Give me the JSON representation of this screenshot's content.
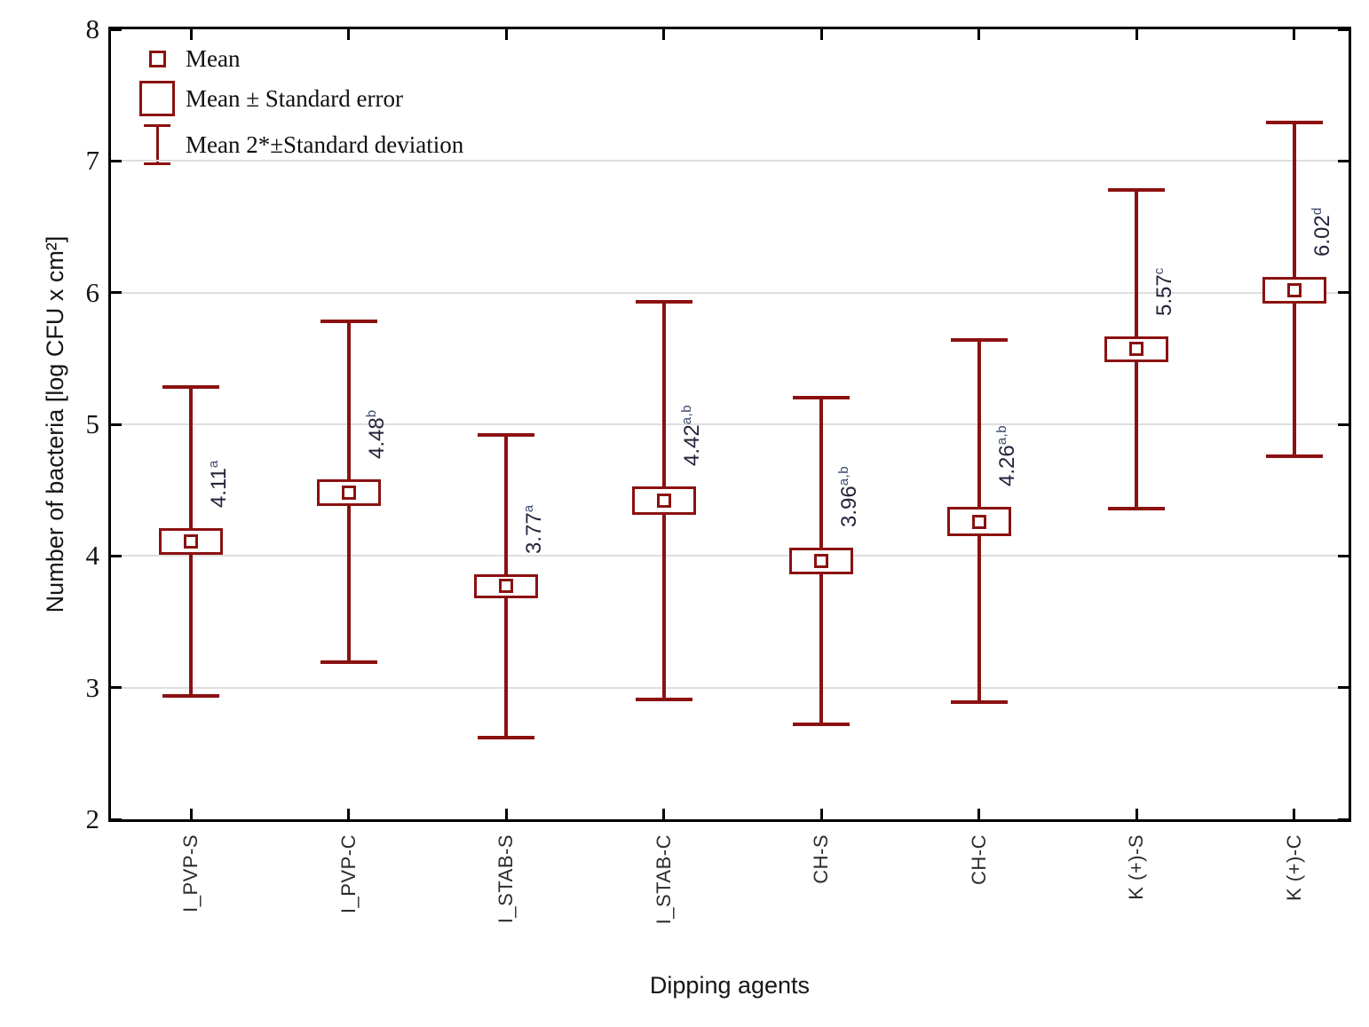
{
  "page": {
    "background": "#ffffff"
  },
  "chart_data": {
    "type": "box-whisker",
    "subtype": "mean / mean±SE box / mean±2SD whisker plot",
    "title": "",
    "xlabel": "Dipping agents",
    "ylabel": "Number of bacteria [log CFU x cm²]",
    "ylim": [
      2,
      8
    ],
    "yticks": [
      2,
      3,
      4,
      5,
      6,
      7,
      8
    ],
    "gridlines_at": [
      3,
      4,
      5,
      6,
      7
    ],
    "grid": "horizontal",
    "legend_position": "top-left inside plot",
    "legend": [
      {
        "marker": "small-square",
        "label": "Mean"
      },
      {
        "marker": "large-square",
        "label": "Mean ± Standard error"
      },
      {
        "marker": "error-bar",
        "label": "Mean 2*±Standard deviation"
      }
    ],
    "series_color": "#8B1111",
    "label_color": "#23233b",
    "categories": [
      "I_PVP-S",
      "I_PVP-C",
      "I_STAB-S",
      "I_STAB-C",
      "CH-S",
      "CH-C",
      "K (+)-S",
      "K (+)-C"
    ],
    "points": [
      {
        "category": "I_PVP-S",
        "mean": 4.11,
        "label": "4.11",
        "sup": "a",
        "se_low": 4.03,
        "se_high": 4.19,
        "sd_low": 2.94,
        "sd_high": 5.28
      },
      {
        "category": "I_PVP-C",
        "mean": 4.48,
        "label": "4.48",
        "sup": "b",
        "se_low": 4.4,
        "se_high": 4.56,
        "sd_low": 3.19,
        "sd_high": 5.78
      },
      {
        "category": "I_STAB-S",
        "mean": 3.77,
        "label": "3.77",
        "sup": "a",
        "se_low": 3.7,
        "se_high": 3.84,
        "sd_low": 2.62,
        "sd_high": 4.92
      },
      {
        "category": "I_STAB-C",
        "mean": 4.42,
        "label": "4.42",
        "sup": "a,b",
        "se_low": 4.33,
        "se_high": 4.51,
        "sd_low": 2.91,
        "sd_high": 5.93
      },
      {
        "category": "CH-S",
        "mean": 3.96,
        "label": "3.96",
        "sup": "a,b",
        "se_low": 3.88,
        "se_high": 4.04,
        "sd_low": 2.72,
        "sd_high": 5.2
      },
      {
        "category": "CH-C",
        "mean": 4.26,
        "label": "4.26",
        "sup": "a,b",
        "se_low": 4.17,
        "se_high": 4.35,
        "sd_low": 2.89,
        "sd_high": 5.64
      },
      {
        "category": "K (+)-S",
        "mean": 5.57,
        "label": "5.57",
        "sup": "c",
        "se_low": 5.49,
        "se_high": 5.65,
        "sd_low": 4.36,
        "sd_high": 6.78
      },
      {
        "category": "K (+)-C",
        "mean": 6.02,
        "label": "6.02",
        "sup": "d",
        "se_low": 5.94,
        "se_high": 6.1,
        "sd_low": 4.76,
        "sd_high": 7.29
      }
    ]
  }
}
